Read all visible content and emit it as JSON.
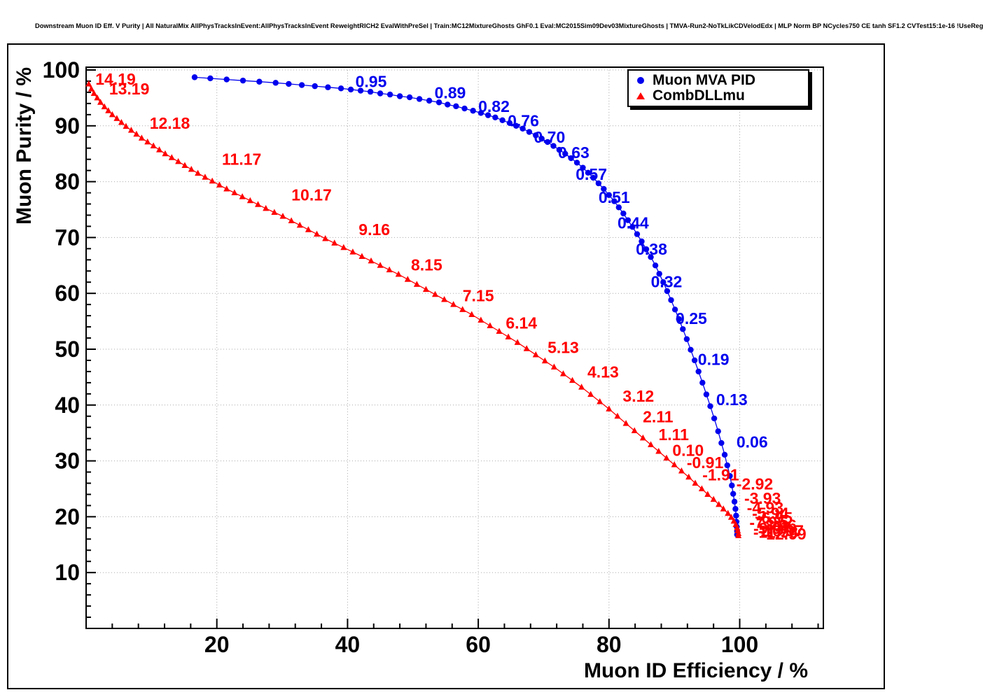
{
  "chart_data": {
    "type": "scatter",
    "title": "Downstream Muon ID Eff. V Purity | All NaturalMix AllPhysTracksInEvent:AllPhysTracksInEvent ReweightRICH2 EvalWithPreSel | Train:MC12MixtureGhosts GhF0.1 Eval:MC2015Sim09Dev03MixtureGhosts | TMVA-Run2-NoTkLikCDVelodEdx | MLP Norm BP NCycles750 CE tanh SF1.2 CVTest15:1e-16 !UseReg",
    "xlabel": "Muon ID Efficiency / %",
    "ylabel": "Muon Purity / %",
    "xlim": [
      0,
      112.8
    ],
    "ylim": [
      0,
      100.5
    ],
    "x_ticks": [
      20,
      40,
      60,
      80,
      100
    ],
    "y_ticks": [
      10,
      20,
      30,
      40,
      50,
      60,
      70,
      80,
      90,
      100
    ],
    "x_minor_step": 4,
    "y_minor_step": 2,
    "grid": true,
    "grid_color": "#aaaaaa",
    "legend_position": "top-right",
    "series": [
      {
        "name": "Muon MVA PID",
        "color": "#0000ee",
        "marker": "circle",
        "points": [
          [
            16.6,
            98.7
          ],
          [
            19,
            98.5
          ],
          [
            21.5,
            98.3
          ],
          [
            24,
            98.1
          ],
          [
            26.5,
            97.9
          ],
          [
            29,
            97.7
          ],
          [
            31,
            97.5
          ],
          [
            33,
            97.3
          ],
          [
            35,
            97.1
          ],
          [
            37,
            96.9
          ],
          [
            39,
            96.7
          ],
          [
            40.5,
            96.5
          ],
          [
            42,
            96.3
          ],
          [
            43.5,
            96.1
          ],
          [
            45,
            95.8
          ],
          [
            46.5,
            95.6
          ],
          [
            48,
            95.3
          ],
          [
            49.5,
            95.1
          ],
          [
            51,
            94.8
          ],
          [
            52.5,
            94.5
          ],
          [
            54,
            94.2
          ],
          [
            55.3,
            93.8
          ],
          [
            56.6,
            93.5
          ],
          [
            57.9,
            93.1
          ],
          [
            59.2,
            92.7
          ],
          [
            60.4,
            92.3
          ],
          [
            61.5,
            91.9
          ],
          [
            62.6,
            91.5
          ],
          [
            63.7,
            91.0
          ],
          [
            64.8,
            90.5
          ],
          [
            65.8,
            90.0
          ],
          [
            66.8,
            89.5
          ],
          [
            67.8,
            88.9
          ],
          [
            68.8,
            88.3
          ],
          [
            69.7,
            87.7
          ],
          [
            70.6,
            87.1
          ],
          [
            71.5,
            86.4
          ],
          [
            72.4,
            85.7
          ],
          [
            73.3,
            85.0
          ],
          [
            74.2,
            84.2
          ],
          [
            75.1,
            83.4
          ],
          [
            76,
            82.5
          ],
          [
            76.8,
            81.6
          ],
          [
            77.6,
            80.7
          ],
          [
            78.4,
            79.7
          ],
          [
            79.2,
            78.7
          ],
          [
            80,
            77.6
          ],
          [
            80.8,
            76.5
          ],
          [
            81.5,
            75.4
          ],
          [
            82.2,
            74.3
          ],
          [
            82.9,
            73.1
          ],
          [
            83.6,
            71.9
          ],
          [
            84.3,
            70.6
          ],
          [
            85,
            69.3
          ],
          [
            85.7,
            67.9
          ],
          [
            86.4,
            66.5
          ],
          [
            87.1,
            65.0
          ],
          [
            87.7,
            63.5
          ],
          [
            88.3,
            62.0
          ],
          [
            88.9,
            60.4
          ],
          [
            89.5,
            58.8
          ],
          [
            90.1,
            57.1
          ],
          [
            90.7,
            55.4
          ],
          [
            91.3,
            53.6
          ],
          [
            91.9,
            51.8
          ],
          [
            92.5,
            49.9
          ],
          [
            93.1,
            48.0
          ],
          [
            93.7,
            46.0
          ],
          [
            94.3,
            44.0
          ],
          [
            94.9,
            41.9
          ],
          [
            95.5,
            39.8
          ],
          [
            96.1,
            37.6
          ],
          [
            96.7,
            35.3
          ],
          [
            97.2,
            33.2
          ],
          [
            97.7,
            31.1
          ],
          [
            98.1,
            29.2
          ],
          [
            98.5,
            27.3
          ],
          [
            98.8,
            25.6
          ],
          [
            99,
            24.1
          ],
          [
            99.2,
            22.7
          ],
          [
            99.35,
            21.4
          ],
          [
            99.45,
            20.2
          ],
          [
            99.5,
            19.1
          ],
          [
            99.55,
            18.2
          ],
          [
            99.6,
            17.4
          ],
          [
            99.6,
            16.8
          ]
        ],
        "cut_labels": [
          {
            "text": "0.95",
            "x": 43.6,
            "y": 97.9
          },
          {
            "text": "0.89",
            "x": 55.7,
            "y": 95.9
          },
          {
            "text": "0.82",
            "x": 62.4,
            "y": 93.5
          },
          {
            "text": "0.76",
            "x": 66.9,
            "y": 90.9
          },
          {
            "text": "0.70",
            "x": 70.9,
            "y": 88.0
          },
          {
            "text": "0.63",
            "x": 74.6,
            "y": 85.2
          },
          {
            "text": "0.57",
            "x": 77.3,
            "y": 81.3
          },
          {
            "text": "0.51",
            "x": 80.8,
            "y": 77.2
          },
          {
            "text": "0.44",
            "x": 83.7,
            "y": 72.6
          },
          {
            "text": "0.38",
            "x": 86.5,
            "y": 67.9
          },
          {
            "text": "0.32",
            "x": 88.8,
            "y": 62.1
          },
          {
            "text": "0.25",
            "x": 92.6,
            "y": 55.5
          },
          {
            "text": "0.19",
            "x": 96.0,
            "y": 48.2
          },
          {
            "text": "0.13",
            "x": 98.8,
            "y": 41.0
          },
          {
            "text": "0.06",
            "x": 101.9,
            "y": 33.4
          }
        ]
      },
      {
        "name": "CombDLLmu",
        "color": "#ff0000",
        "marker": "triangle",
        "points": [
          [
            0.4,
            97.5
          ],
          [
            0.8,
            96.6
          ],
          [
            1.2,
            95.8
          ],
          [
            1.7,
            95
          ],
          [
            2.2,
            94.2
          ],
          [
            2.8,
            93.4
          ],
          [
            3.4,
            92.7
          ],
          [
            4,
            92
          ],
          [
            4.7,
            91.3
          ],
          [
            5.4,
            90.6
          ],
          [
            6.1,
            89.9
          ],
          [
            6.9,
            89.2
          ],
          [
            7.7,
            88.5
          ],
          [
            8.5,
            87.8
          ],
          [
            9.4,
            87.1
          ],
          [
            10.3,
            86.4
          ],
          [
            11.2,
            85.7
          ],
          [
            12.1,
            85
          ],
          [
            13.1,
            84.3
          ],
          [
            14.1,
            83.6
          ],
          [
            15.1,
            82.9
          ],
          [
            16.1,
            82.2
          ],
          [
            17.1,
            81.5
          ],
          [
            18.2,
            80.8
          ],
          [
            19.3,
            80.1
          ],
          [
            20.4,
            79.4
          ],
          [
            21.5,
            78.7
          ],
          [
            22.7,
            78
          ],
          [
            23.9,
            77.3
          ],
          [
            25.1,
            76.6
          ],
          [
            26.3,
            75.9
          ],
          [
            27.5,
            75.2
          ],
          [
            28.8,
            74.5
          ],
          [
            30.1,
            73.8
          ],
          [
            31.4,
            73
          ],
          [
            32.7,
            72.2
          ],
          [
            34,
            71.4
          ],
          [
            35.3,
            70.6
          ],
          [
            36.6,
            69.8
          ],
          [
            38,
            69
          ],
          [
            39.4,
            68.2
          ],
          [
            40.8,
            67.4
          ],
          [
            42.2,
            66.6
          ],
          [
            43.6,
            65.8
          ],
          [
            45,
            65
          ],
          [
            46.4,
            64.2
          ],
          [
            47.8,
            63.4
          ],
          [
            49.2,
            62.5
          ],
          [
            50.6,
            61.6
          ],
          [
            52,
            60.7
          ],
          [
            53.4,
            59.8
          ],
          [
            54.8,
            58.9
          ],
          [
            56.2,
            58
          ],
          [
            57.6,
            57.1
          ],
          [
            59,
            56.2
          ],
          [
            60.4,
            55.2
          ],
          [
            61.8,
            54.2
          ],
          [
            63.2,
            53.2
          ],
          [
            64.6,
            52.2
          ],
          [
            66,
            51.2
          ],
          [
            67.4,
            50.1
          ],
          [
            68.8,
            49
          ],
          [
            70.2,
            47.9
          ],
          [
            71.6,
            46.8
          ],
          [
            73,
            45.6
          ],
          [
            74.4,
            44.4
          ],
          [
            75.8,
            43.2
          ],
          [
            77.2,
            41.9
          ],
          [
            78.6,
            40.6
          ],
          [
            80,
            39.3
          ],
          [
            81.3,
            38
          ],
          [
            82.6,
            36.7
          ],
          [
            83.9,
            35.4
          ],
          [
            85.2,
            34.1
          ],
          [
            86.4,
            32.9
          ],
          [
            87.6,
            31.7
          ],
          [
            88.8,
            30.5
          ],
          [
            90,
            29.3
          ],
          [
            91.1,
            28.2
          ],
          [
            92.2,
            27.1
          ],
          [
            93.2,
            26
          ],
          [
            94.2,
            25
          ],
          [
            95.1,
            24
          ],
          [
            96,
            23.1
          ],
          [
            96.8,
            22.2
          ],
          [
            97.5,
            21.4
          ],
          [
            98.2,
            20.6
          ],
          [
            98.7,
            19.9
          ],
          [
            99.1,
            19.2
          ],
          [
            99.4,
            18.6
          ],
          [
            99.6,
            18
          ],
          [
            99.7,
            17.5
          ],
          [
            99.8,
            17
          ],
          [
            99.8,
            16.6
          ]
        ],
        "cut_labels": [
          {
            "text": "14.19",
            "x": 4.5,
            "y": 98.4
          },
          {
            "text": "13.19",
            "x": 6.6,
            "y": 96.6
          },
          {
            "text": "12.18",
            "x": 12.8,
            "y": 90.5
          },
          {
            "text": "11.17",
            "x": 23.8,
            "y": 84.0
          },
          {
            "text": "10.17",
            "x": 34.5,
            "y": 77.6
          },
          {
            "text": "9.16",
            "x": 44.1,
            "y": 71.4
          },
          {
            "text": "8.15",
            "x": 52.1,
            "y": 65.1
          },
          {
            "text": "7.15",
            "x": 60.0,
            "y": 59.6
          },
          {
            "text": "6.14",
            "x": 66.6,
            "y": 54.7
          },
          {
            "text": "5.13",
            "x": 73.0,
            "y": 50.3
          },
          {
            "text": "4.13",
            "x": 79.1,
            "y": 45.9
          },
          {
            "text": "3.12",
            "x": 84.5,
            "y": 41.6
          },
          {
            "text": "2.11",
            "x": 87.5,
            "y": 37.9
          },
          {
            "text": "1.11",
            "x": 89.9,
            "y": 34.7
          },
          {
            "text": "0.10",
            "x": 92.1,
            "y": 31.9
          },
          {
            "text": "-0.91",
            "x": 94.7,
            "y": 29.7
          },
          {
            "text": "-1.91",
            "x": 97.1,
            "y": 27.5
          },
          {
            "text": "-2.92",
            "x": 102.3,
            "y": 25.9
          },
          {
            "text": "-3.93",
            "x": 103.5,
            "y": 23.3
          },
          {
            "text": "-4.93",
            "x": 103.9,
            "y": 21.6
          },
          {
            "text": "-5.94",
            "x": 104.7,
            "y": 20.6
          },
          {
            "text": "-6.95",
            "x": 105.3,
            "y": 19.8
          },
          {
            "text": "-7.95",
            "x": 104.3,
            "y": 19.0
          },
          {
            "text": "-8.96",
            "x": 105.9,
            "y": 18.5
          },
          {
            "text": "-9.97",
            "x": 104.9,
            "y": 17.9
          },
          {
            "text": "-10.97",
            "x": 106.3,
            "y": 17.5
          },
          {
            "text": "-11.98",
            "x": 105.5,
            "y": 17.2
          },
          {
            "text": "-12.99",
            "x": 106.7,
            "y": 16.9
          }
        ]
      }
    ]
  }
}
